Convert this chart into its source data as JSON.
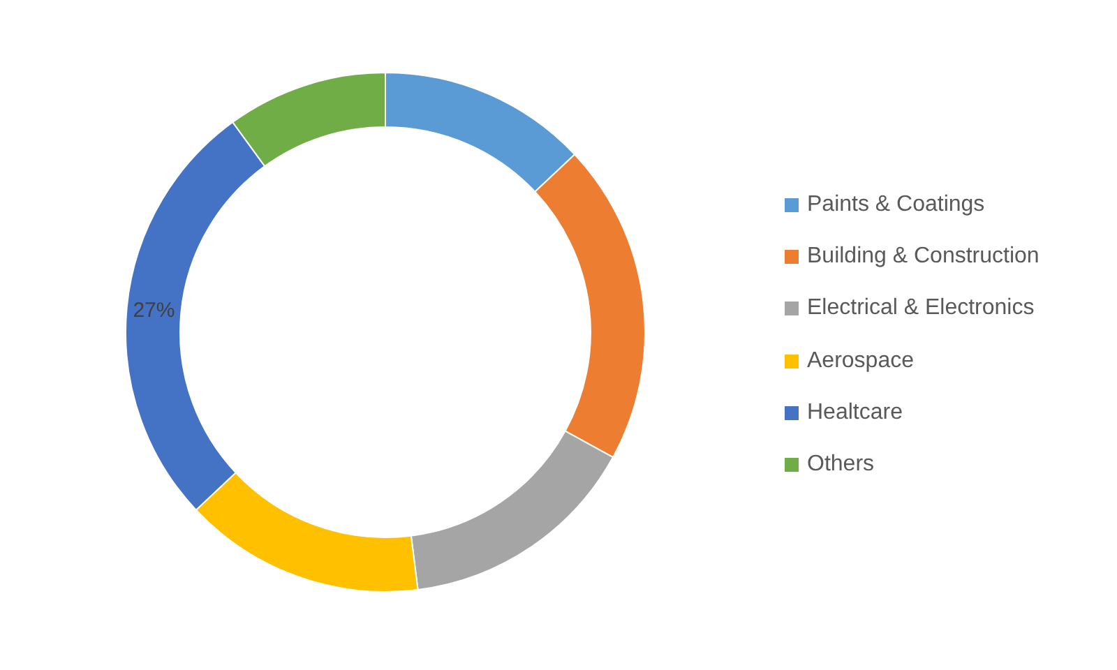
{
  "chart_data": {
    "type": "donut",
    "categories": [
      "Paints & Coatings",
      "Building & Construction",
      "Electrical & Electronics",
      "Aerospace",
      "Healtcare",
      "Others"
    ],
    "values": [
      13,
      20,
      15,
      15,
      27,
      10
    ],
    "colors": [
      "#5b9bd5",
      "#ed7d31",
      "#a5a5a5",
      "#ffc000",
      "#4472c4",
      "#70ad47"
    ],
    "value_labels": [
      null,
      null,
      null,
      null,
      "27%",
      null
    ],
    "legend": "right"
  }
}
